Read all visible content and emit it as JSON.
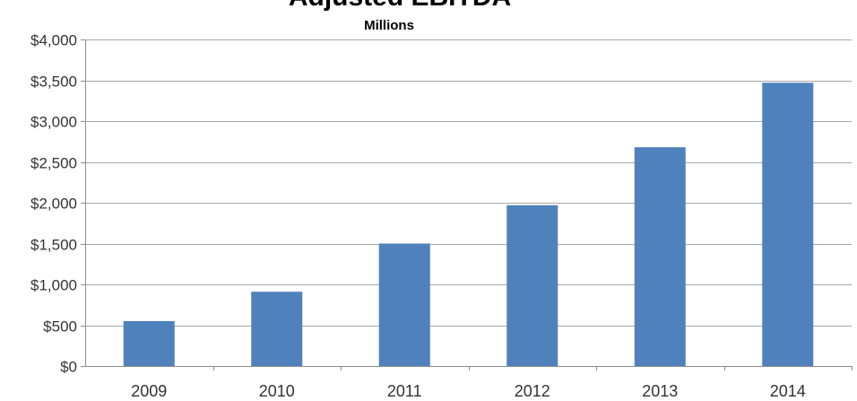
{
  "chart_data": {
    "type": "bar",
    "title": "Adjusted EBITDA",
    "subtitle": "Millions",
    "categories": [
      "2009",
      "2010",
      "2011",
      "2012",
      "2013",
      "2014"
    ],
    "series": [
      {
        "values": [
          550,
          910,
          1500,
          1970,
          2680,
          3470
        ]
      }
    ],
    "ylim": [
      0,
      4000
    ],
    "yticks": [
      0,
      500,
      1000,
      1500,
      2000,
      2500,
      3000,
      3500,
      4000
    ],
    "ytick_labels": [
      "$0",
      "$500",
      "$1,000",
      "$1,500",
      "$2,000",
      "$2,500",
      "$3,000",
      "$3,500",
      "$4,000"
    ],
    "xlabel": "",
    "ylabel": "",
    "grid": true,
    "legend": "none",
    "bar_color": "#4f81bd"
  }
}
